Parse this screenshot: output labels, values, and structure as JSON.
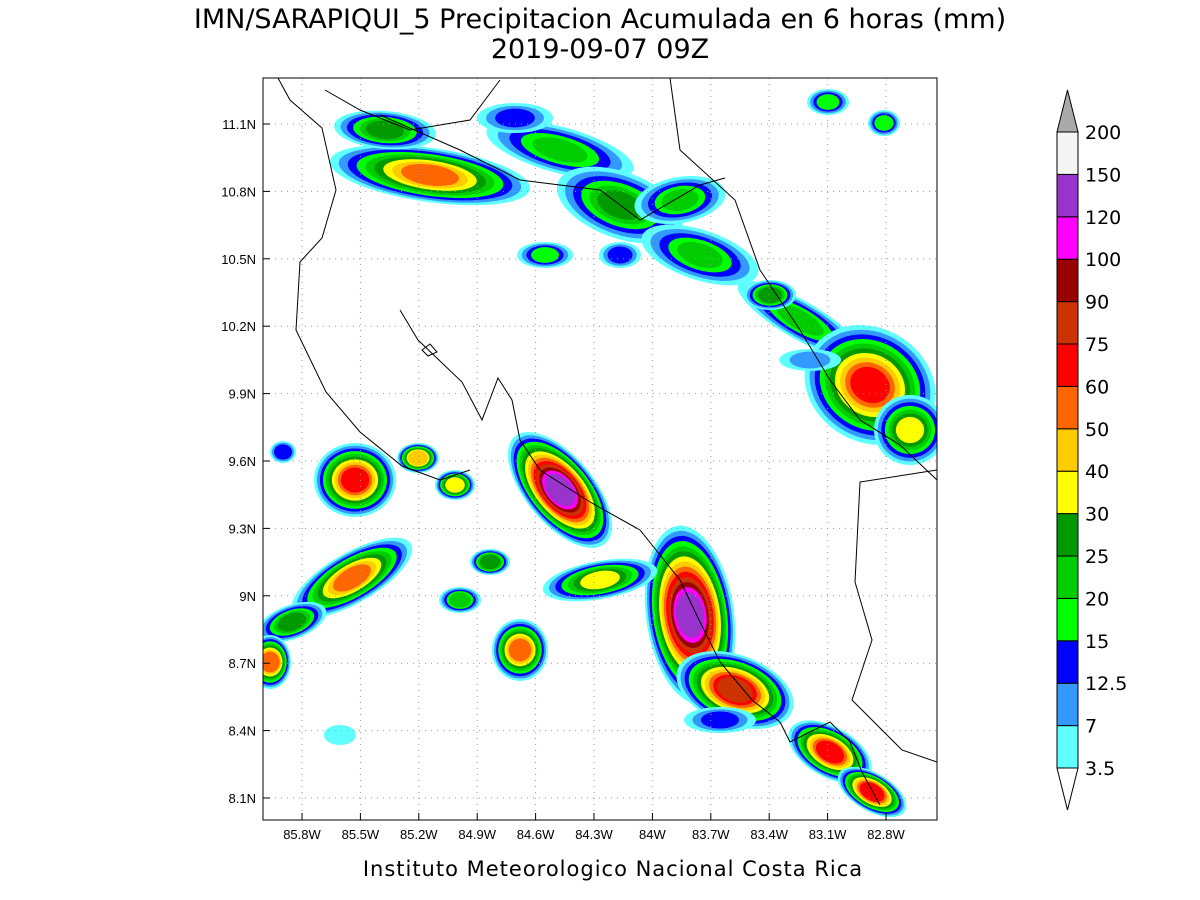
{
  "header": {
    "title": "IMN/SARAPIQUI_5 Precipitacion Acumulada en 6 horas (mm)",
    "subtitle": "2019-09-07 09Z"
  },
  "map": {
    "lat_ticks": [
      "11.1N",
      "10.8N",
      "10.5N",
      "10.2N",
      "9.9N",
      "9.6N",
      "9.3N",
      "9N",
      "8.7N",
      "8.4N",
      "8.1N"
    ],
    "lon_ticks": [
      "85.8W",
      "85.5W",
      "85.2W",
      "84.9W",
      "84.6W",
      "84.3W",
      "84W",
      "83.7W",
      "83.4W",
      "83.1W",
      "82.8W"
    ]
  },
  "legend": {
    "levels": [
      3.5,
      7,
      12.5,
      15,
      20,
      25,
      30,
      40,
      50,
      60,
      75,
      90,
      100,
      120,
      150,
      200
    ],
    "colors": [
      "#60ffff",
      "#3399ff",
      "#0000ff",
      "#00ff00",
      "#00cc00",
      "#009900",
      "#ffff00",
      "#ffcc00",
      "#ff6600",
      "#ff0000",
      "#cc3300",
      "#990000",
      "#ff00ff",
      "#9933cc",
      "#f5f5f5"
    ],
    "under_color": "#ffffff",
    "over_color": "#aaaaaa"
  },
  "footer": {
    "text": "Instituto Meteorologico Nacional Costa Rica"
  }
}
